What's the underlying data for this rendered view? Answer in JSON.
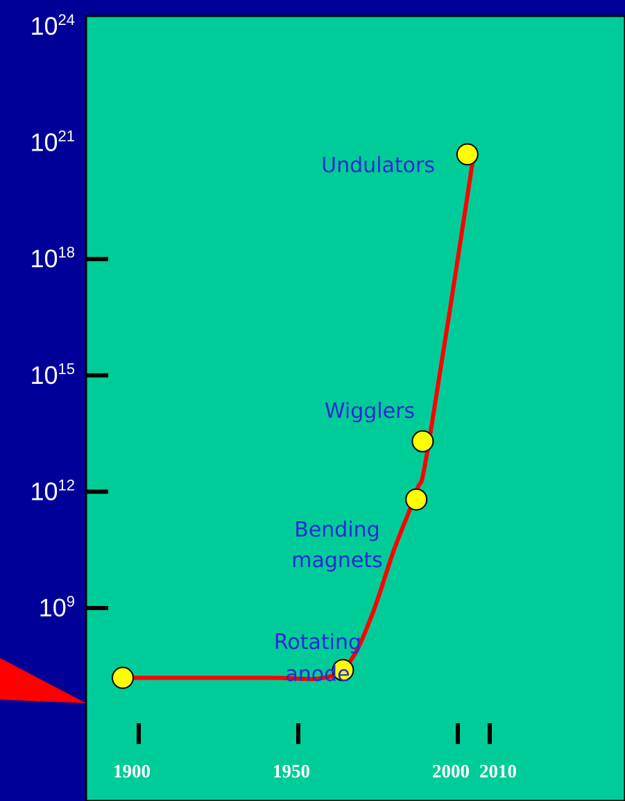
{
  "chart_data": {
    "type": "line",
    "title": "",
    "xlabel": "",
    "ylabel": "",
    "y_scale": "log",
    "y_tick_labels": [
      {
        "base": "10",
        "exp": "9",
        "value": 1000000000.0
      },
      {
        "base": "10",
        "exp": "12",
        "value": 1000000000000.0
      },
      {
        "base": "10",
        "exp": "15",
        "value": 1000000000000000.0
      },
      {
        "base": "10",
        "exp": "18",
        "value": 1e+18
      },
      {
        "base": "10",
        "exp": "21",
        "value": 1e+21
      },
      {
        "base": "10",
        "exp": "24",
        "value": 1e+24
      }
    ],
    "ylim_exponent": [
      6,
      24
    ],
    "x_tick_labels": [
      "1900",
      "1950",
      "2000",
      "2010"
    ],
    "x_tick_values": [
      1900,
      1950,
      2000,
      2010
    ],
    "xlim": [
      1870,
      2040
    ],
    "series": [
      {
        "color": "#ff0000",
        "curve": [
          {
            "x": 1895,
            "log_y": 7.2
          },
          {
            "x": 1940,
            "log_y": 7.2
          },
          {
            "x": 1958,
            "log_y": 7.2
          },
          {
            "x": 1966,
            "log_y": 7.6
          },
          {
            "x": 1973,
            "log_y": 8.8
          },
          {
            "x": 1980,
            "log_y": 10.5
          },
          {
            "x": 1987,
            "log_y": 12.0
          },
          {
            "x": 1991,
            "log_y": 13.3
          },
          {
            "x": 2005,
            "log_y": 20.7
          }
        ]
      }
    ],
    "points": [
      {
        "x": 1895,
        "log_y": 7.2,
        "label": ""
      },
      {
        "x": 1964,
        "log_y": 7.4,
        "label": "Rotating anode",
        "label_lines": [
          "Rotating",
          "anode"
        ]
      },
      {
        "x": 1987,
        "log_y": 11.8,
        "label": "Bending magnets",
        "label_lines": [
          "Bending",
          "magnets"
        ]
      },
      {
        "x": 1989,
        "log_y": 13.3,
        "label": "Wigglers",
        "label_lines": [
          "Wigglers"
        ]
      },
      {
        "x": 2003,
        "log_y": 20.7,
        "label": "Undulators",
        "label_lines": [
          "Undulators"
        ]
      }
    ],
    "colors": {
      "plot_background": "#00cc99",
      "outer_background": "#000099",
      "curve": "#ff0000",
      "points": "#ffff00",
      "annotation_text": "#2a2ad0",
      "axis_text": "#ffffff"
    },
    "grid": false,
    "legend": "none"
  }
}
